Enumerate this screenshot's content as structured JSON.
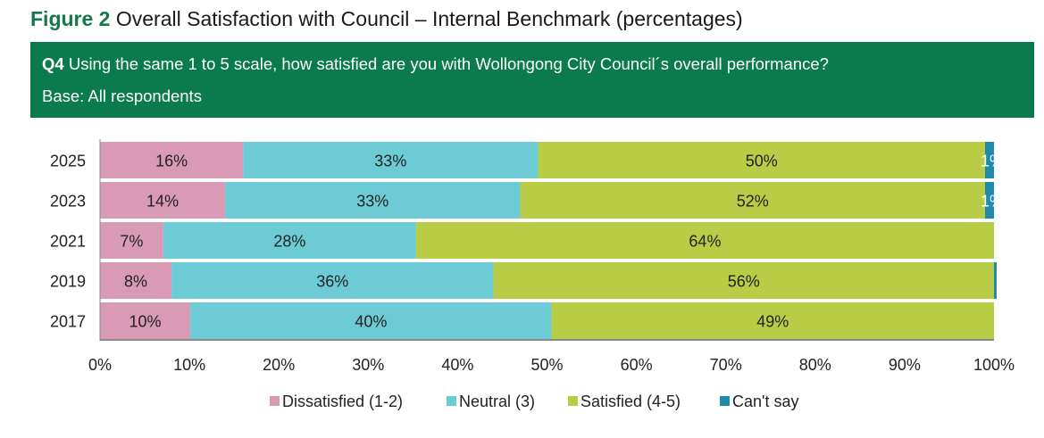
{
  "title": {
    "label": "Figure 2",
    "text": "Overall Satisfaction with Council – Internal Benchmark (percentages)"
  },
  "question": {
    "label": "Q4",
    "text": "Using the same 1 to 5 scale, how satisfied are you with Wollongong City Council´s overall performance?",
    "base": "Base: All respondents"
  },
  "chart_data": {
    "type": "bar",
    "orientation": "horizontal",
    "stacked": true,
    "categories": [
      "2025",
      "2023",
      "2021",
      "2019",
      "2017"
    ],
    "series": [
      {
        "name": "Dissatisfied (1-2)",
        "color": "#d99ab6",
        "values": [
          16,
          14,
          7,
          8,
          10
        ]
      },
      {
        "name": "Neutral (3)",
        "color": "#6dcbd6",
        "values": [
          33,
          33,
          28,
          36,
          40
        ]
      },
      {
        "name": "Satisfied (4-5)",
        "color": "#b9cc46",
        "values": [
          50,
          52,
          64,
          56,
          49
        ]
      },
      {
        "name": "Can't say",
        "color": "#1f8aab",
        "values": [
          1,
          1,
          0,
          0,
          0
        ]
      }
    ],
    "xlim": [
      0,
      100
    ],
    "xticks": [
      "0%",
      "10%",
      "20%",
      "30%",
      "40%",
      "50%",
      "60%",
      "70%",
      "80%",
      "90%",
      "100%"
    ],
    "grid": false,
    "legend": "bottom"
  }
}
